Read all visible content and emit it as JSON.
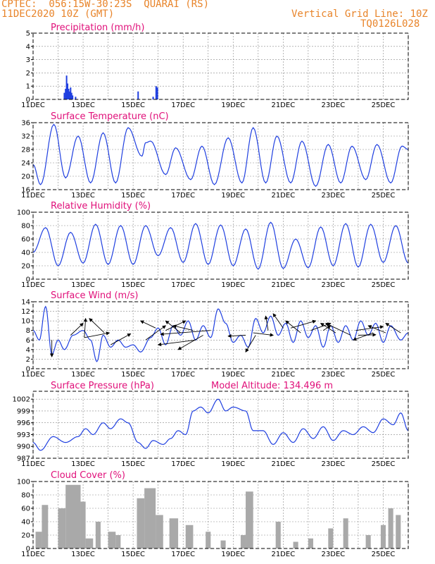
{
  "header": {
    "org_station": "CPTEC:  056:15W-30:23S  QUARAI (RS)",
    "datetime": "11DEC2020 10Z (GMT)",
    "vgrid": "Vertical Grid Line: 10Z",
    "code": "TQ0126L028"
  },
  "colors": {
    "header": "#e8842a",
    "title": "#e0107a",
    "line": "#1f3fe0",
    "cloud": "#a9a9a9",
    "grid": "#888888"
  },
  "chart_data": [
    {
      "type": "bar",
      "title": "Precipitation (mm/h)",
      "x_labels": [
        "11DEC",
        "13DEC",
        "15DEC",
        "17DEC",
        "19DEC",
        "21DEC",
        "23DEC",
        "25DEC"
      ],
      "x_unit": "day_offset",
      "ylim": [
        0,
        5
      ],
      "yticks": [
        "0",
        "1",
        "2",
        "3",
        "4",
        "5"
      ],
      "grid": true,
      "points": [
        {
          "x": 1.25,
          "y": 0.5
        },
        {
          "x": 1.3,
          "y": 0.8
        },
        {
          "x": 1.34,
          "y": 1.8
        },
        {
          "x": 1.38,
          "y": 1.2
        },
        {
          "x": 1.42,
          "y": 0.8
        },
        {
          "x": 1.46,
          "y": 0.6
        },
        {
          "x": 1.5,
          "y": 0.9
        },
        {
          "x": 1.54,
          "y": 0.5
        },
        {
          "x": 1.58,
          "y": 0.3
        },
        {
          "x": 1.7,
          "y": 0.2
        },
        {
          "x": 4.2,
          "y": 0.6
        },
        {
          "x": 4.8,
          "y": 0.2
        },
        {
          "x": 4.92,
          "y": 1.0
        },
        {
          "x": 4.97,
          "y": 0.9
        }
      ]
    },
    {
      "type": "line",
      "title": "Surface Temperature (nC)",
      "x_labels": [
        "11DEC",
        "13DEC",
        "15DEC",
        "17DEC",
        "19DEC",
        "21DEC",
        "23DEC",
        "25DEC"
      ],
      "x_unit": "day_offset",
      "ylim": [
        16,
        36
      ],
      "yticks": [
        "16",
        "20",
        "24",
        "28",
        "32",
        "36"
      ],
      "grid": true,
      "extrema": [
        [
          0.0,
          23.5
        ],
        [
          0.3,
          17.5
        ],
        [
          0.83,
          35.5
        ],
        [
          1.3,
          19.5
        ],
        [
          1.8,
          32.0
        ],
        [
          2.3,
          18.0
        ],
        [
          2.8,
          33.0
        ],
        [
          3.3,
          18.0
        ],
        [
          3.8,
          34.5
        ],
        [
          4.35,
          26.0
        ],
        [
          4.5,
          30.0
        ],
        [
          4.7,
          30.5
        ],
        [
          5.3,
          20.5
        ],
        [
          5.7,
          28.5
        ],
        [
          6.3,
          19.0
        ],
        [
          6.75,
          29.0
        ],
        [
          7.25,
          17.5
        ],
        [
          7.8,
          31.5
        ],
        [
          8.35,
          18.0
        ],
        [
          8.8,
          34.5
        ],
        [
          9.3,
          18.0
        ],
        [
          9.75,
          32.0
        ],
        [
          10.3,
          18.0
        ],
        [
          10.75,
          30.5
        ],
        [
          11.3,
          17.0
        ],
        [
          11.8,
          29.5
        ],
        [
          12.3,
          18.0
        ],
        [
          12.75,
          29.0
        ],
        [
          13.3,
          19.0
        ],
        [
          13.75,
          29.5
        ],
        [
          14.3,
          18.0
        ],
        [
          14.75,
          29.0
        ],
        [
          15.0,
          28.0
        ]
      ]
    },
    {
      "type": "line",
      "title": "Relative Humidity (%)",
      "x_labels": [
        "11DEC",
        "13DEC",
        "15DEC",
        "17DEC",
        "19DEC",
        "21DEC",
        "23DEC",
        "25DEC"
      ],
      "x_unit": "day_offset",
      "ylim": [
        0,
        100
      ],
      "yticks": [
        "0",
        "20",
        "40",
        "60",
        "80",
        "100"
      ],
      "grid": true,
      "extrema": [
        [
          0.0,
          40.0
        ],
        [
          0.5,
          77.0
        ],
        [
          1.0,
          20.0
        ],
        [
          1.5,
          70.0
        ],
        [
          2.0,
          24.0
        ],
        [
          2.5,
          82.0
        ],
        [
          3.0,
          22.0
        ],
        [
          3.5,
          80.0
        ],
        [
          4.0,
          22.0
        ],
        [
          4.5,
          80.0
        ],
        [
          5.0,
          35.0
        ],
        [
          5.5,
          77.0
        ],
        [
          6.0,
          25.0
        ],
        [
          6.5,
          83.0
        ],
        [
          7.0,
          22.0
        ],
        [
          7.5,
          81.0
        ],
        [
          8.0,
          20.0
        ],
        [
          8.5,
          75.0
        ],
        [
          9.0,
          15.0
        ],
        [
          9.5,
          85.0
        ],
        [
          10.0,
          16.0
        ],
        [
          10.5,
          60.0
        ],
        [
          11.0,
          17.0
        ],
        [
          11.5,
          78.0
        ],
        [
          12.0,
          20.0
        ],
        [
          12.5,
          83.0
        ],
        [
          13.0,
          18.0
        ],
        [
          13.5,
          82.0
        ],
        [
          14.0,
          25.0
        ],
        [
          14.5,
          80.0
        ],
        [
          15.0,
          24.0
        ]
      ]
    },
    {
      "type": "line",
      "title": "Surface Wind (m/s)",
      "x_labels": [
        "11DEC",
        "13DEC",
        "15DEC",
        "17DEC",
        "19DEC",
        "21DEC",
        "23DEC",
        "25DEC"
      ],
      "x_unit": "day_offset",
      "ylim": [
        0,
        14
      ],
      "yticks": [
        "0",
        "2",
        "4",
        "6",
        "8",
        "10",
        "12",
        "14"
      ],
      "grid": true,
      "extrema": [
        [
          0.0,
          8.0
        ],
        [
          0.25,
          6.0
        ],
        [
          0.5,
          13.0
        ],
        [
          0.75,
          3.0
        ],
        [
          1.0,
          6.0
        ],
        [
          1.25,
          4.0
        ],
        [
          1.6,
          7.0
        ],
        [
          2.0,
          8.0
        ],
        [
          2.3,
          6.0
        ],
        [
          2.55,
          1.5
        ],
        [
          2.8,
          7.0
        ],
        [
          3.1,
          4.5
        ],
        [
          3.4,
          6.0
        ],
        [
          3.7,
          4.5
        ],
        [
          4.0,
          5.0
        ],
        [
          4.3,
          3.5
        ],
        [
          4.7,
          6.5
        ],
        [
          5.0,
          8.5
        ],
        [
          5.3,
          5.0
        ],
        [
          5.6,
          9.0
        ],
        [
          5.9,
          7.0
        ],
        [
          6.2,
          10.0
        ],
        [
          6.5,
          6.0
        ],
        [
          6.8,
          9.0
        ],
        [
          7.1,
          6.5
        ],
        [
          7.4,
          12.5
        ],
        [
          7.7,
          9.5
        ],
        [
          8.0,
          5.5
        ],
        [
          8.3,
          7.0
        ],
        [
          8.6,
          4.5
        ],
        [
          8.9,
          10.5
        ],
        [
          9.2,
          7.5
        ],
        [
          9.5,
          11.0
        ],
        [
          9.8,
          7.0
        ],
        [
          10.1,
          9.5
        ],
        [
          10.4,
          5.5
        ],
        [
          10.7,
          10.0
        ],
        [
          11.0,
          6.5
        ],
        [
          11.3,
          9.0
        ],
        [
          11.6,
          4.5
        ],
        [
          11.9,
          9.0
        ],
        [
          12.2,
          5.5
        ],
        [
          12.5,
          9.0
        ],
        [
          12.8,
          6.0
        ],
        [
          13.1,
          10.0
        ],
        [
          13.4,
          7.0
        ],
        [
          13.7,
          9.5
        ],
        [
          14.0,
          5.5
        ],
        [
          14.3,
          9.0
        ],
        [
          14.7,
          6.0
        ],
        [
          15.0,
          7.5
        ]
      ],
      "arrows": [
        {
          "x": 0.75,
          "y": 6.0,
          "dx": 0,
          "dy": -3.5
        },
        {
          "x": 1.5,
          "y": 7.0,
          "dx": 0.5,
          "dy": 2.5
        },
        {
          "x": 2.05,
          "y": 6.5,
          "dx": 0.05,
          "dy": 4.0
        },
        {
          "x": 2.05,
          "y": 6.5,
          "dx": 1.0,
          "dy": 1.0
        },
        {
          "x": 2.85,
          "y": 7.5,
          "dx": -0.6,
          "dy": 3.0
        },
        {
          "x": 3.1,
          "y": 5.0,
          "dx": 0.8,
          "dy": 2.3
        },
        {
          "x": 4.5,
          "y": 6.0,
          "dx": 0.8,
          "dy": 3.0
        },
        {
          "x": 4.9,
          "y": 8.5,
          "dx": -0.6,
          "dy": 1.5
        },
        {
          "x": 5.3,
          "y": 8.0,
          "dx": 0.8,
          "dy": 2.0
        },
        {
          "x": 5.9,
          "y": 7.5,
          "dx": -0.6,
          "dy": 2.5
        },
        {
          "x": 6.4,
          "y": 8.0,
          "dx": -0.8,
          "dy": 1.0
        },
        {
          "x": 6.5,
          "y": 6.0,
          "dx": -1.5,
          "dy": -1.0
        },
        {
          "x": 7.1,
          "y": 8.0,
          "dx": -2.0,
          "dy": -0.8
        },
        {
          "x": 6.8,
          "y": 7.0,
          "dx": -1.0,
          "dy": -3.0
        },
        {
          "x": 8.5,
          "y": 7.0,
          "dx": -0.7,
          "dy": -0.2
        },
        {
          "x": 8.8,
          "y": 7.5,
          "dx": 0.8,
          "dy": -0.5
        },
        {
          "x": 8.9,
          "y": 7.0,
          "dx": -0.4,
          "dy": -3.5
        },
        {
          "x": 9.4,
          "y": 8.0,
          "dx": -0.1,
          "dy": 3.0
        },
        {
          "x": 10.0,
          "y": 8.5,
          "dx": -0.4,
          "dy": 3.0
        },
        {
          "x": 10.3,
          "y": 8.5,
          "dx": 1.0,
          "dy": 1.5
        },
        {
          "x": 10.7,
          "y": 7.5,
          "dx": -0.6,
          "dy": 2.5
        },
        {
          "x": 11.1,
          "y": 8.0,
          "dx": 0.8,
          "dy": 1.5
        },
        {
          "x": 11.6,
          "y": 8.0,
          "dx": 0.3,
          "dy": 1.0
        },
        {
          "x": 12.1,
          "y": 7.5,
          "dx": -0.6,
          "dy": 2.0
        },
        {
          "x": 12.7,
          "y": 7.0,
          "dx": -1.0,
          "dy": 2.5
        },
        {
          "x": 12.9,
          "y": 8.0,
          "dx": 1.1,
          "dy": 0.8
        },
        {
          "x": 13.0,
          "y": 7.0,
          "dx": 0.7,
          "dy": 0.1
        },
        {
          "x": 13.6,
          "y": 7.5,
          "dx": -0.8,
          "dy": -1.5
        },
        {
          "x": 14.1,
          "y": 7.5,
          "dx": -0.7,
          "dy": 1.5
        },
        {
          "x": 14.7,
          "y": 7.5,
          "dx": -0.6,
          "dy": 2.0
        }
      ]
    },
    {
      "type": "line",
      "title": "Surface Pressure (hPa)",
      "annotation": "Model Altitude: 134.496 m",
      "x_labels": [
        "11DEC",
        "13DEC",
        "15DEC",
        "17DEC",
        "19DEC",
        "21DEC",
        "23DEC",
        "25DEC"
      ],
      "x_unit": "day_offset",
      "ylim": [
        987,
        1004
      ],
      "yticks": [
        "987",
        "990",
        "993",
        "996",
        "999",
        "1002"
      ],
      "grid": true,
      "extrema": [
        [
          0.0,
          991.0
        ],
        [
          0.3,
          989.0
        ],
        [
          0.8,
          992.5
        ],
        [
          1.3,
          991.0
        ],
        [
          1.8,
          992.5
        ],
        [
          2.1,
          994.5
        ],
        [
          2.4,
          993.0
        ],
        [
          2.8,
          996.0
        ],
        [
          3.1,
          994.5
        ],
        [
          3.5,
          997.0
        ],
        [
          3.8,
          996.0
        ],
        [
          4.2,
          991.0
        ],
        [
          4.5,
          989.5
        ],
        [
          4.8,
          991.5
        ],
        [
          5.2,
          990.5
        ],
        [
          5.5,
          992.0
        ],
        [
          5.8,
          994.0
        ],
        [
          6.1,
          993.0
        ],
        [
          6.4,
          999.0
        ],
        [
          6.7,
          1000.0
        ],
        [
          7.0,
          998.5
        ],
        [
          7.4,
          1002.0
        ],
        [
          7.7,
          999.0
        ],
        [
          8.0,
          1000.0
        ],
        [
          8.5,
          999.0
        ],
        [
          8.8,
          994.0
        ],
        [
          9.2,
          994.0
        ],
        [
          9.6,
          990.5
        ],
        [
          10.0,
          993.5
        ],
        [
          10.4,
          991.0
        ],
        [
          10.8,
          994.5
        ],
        [
          11.2,
          992.0
        ],
        [
          11.6,
          995.0
        ],
        [
          12.0,
          991.5
        ],
        [
          12.4,
          994.0
        ],
        [
          12.8,
          993.0
        ],
        [
          13.2,
          995.0
        ],
        [
          13.6,
          993.5
        ],
        [
          14.0,
          997.0
        ],
        [
          14.4,
          995.5
        ],
        [
          14.7,
          998.5
        ],
        [
          15.0,
          994.0
        ]
      ]
    },
    {
      "type": "bar",
      "title": "Cloud Cover (%)",
      "x_labels": [
        "11DEC",
        "13DEC",
        "15DEC",
        "17DEC",
        "19DEC",
        "21DEC",
        "23DEC",
        "25DEC"
      ],
      "x_unit": "day_offset",
      "ylim": [
        0,
        100
      ],
      "yticks": [
        "0",
        "20",
        "40",
        "60",
        "80",
        "100"
      ],
      "grid": true,
      "segments": [
        [
          0.1,
          0.35,
          25
        ],
        [
          0.35,
          0.6,
          65
        ],
        [
          1.0,
          1.3,
          60
        ],
        [
          1.3,
          1.9,
          95
        ],
        [
          1.9,
          2.1,
          70
        ],
        [
          2.1,
          2.4,
          15
        ],
        [
          2.5,
          2.7,
          40
        ],
        [
          3.0,
          3.3,
          25
        ],
        [
          3.3,
          3.5,
          20
        ],
        [
          4.15,
          4.45,
          75
        ],
        [
          4.45,
          4.9,
          90
        ],
        [
          4.9,
          5.2,
          50
        ],
        [
          5.45,
          5.8,
          45
        ],
        [
          6.1,
          6.4,
          35
        ],
        [
          6.9,
          7.1,
          25
        ],
        [
          7.5,
          7.7,
          12
        ],
        [
          8.3,
          8.5,
          20
        ],
        [
          8.5,
          8.8,
          85
        ],
        [
          9.7,
          9.9,
          40
        ],
        [
          10.4,
          10.6,
          10
        ],
        [
          11.0,
          11.2,
          15
        ],
        [
          11.8,
          12.0,
          30
        ],
        [
          12.4,
          12.6,
          45
        ],
        [
          13.3,
          13.5,
          20
        ],
        [
          13.9,
          14.1,
          35
        ],
        [
          14.2,
          14.4,
          60
        ],
        [
          14.5,
          14.7,
          50
        ]
      ]
    }
  ]
}
